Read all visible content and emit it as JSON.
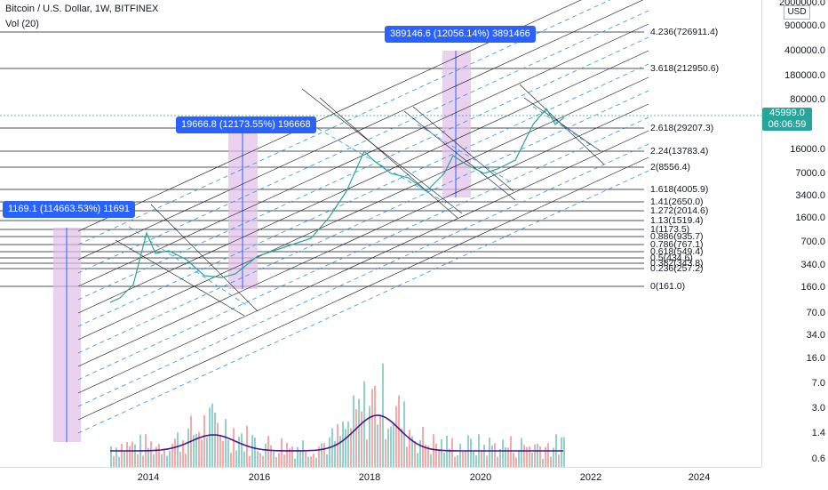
{
  "legend": {
    "title": "Bitcoin / U.S. Dollar, 1W, BITFINEX",
    "volume": "Vol (20)"
  },
  "price_axis": {
    "currency": "USD",
    "ticks": [
      "2000000.0",
      "900000.0",
      "400000.0",
      "180000.0",
      "80000.0",
      "16000.0",
      "7000.0",
      "3400.0",
      "1600.0",
      "700.0",
      "340.0",
      "160.0",
      "70.0",
      "34.0",
      "16.0",
      "7.0",
      "3.0",
      "1.4",
      "0.6"
    ],
    "current_price": "45999.0",
    "countdown": "06:06:59"
  },
  "time_axis": {
    "ticks": [
      "2014",
      "2016",
      "2018",
      "2020",
      "2022",
      "2024"
    ]
  },
  "fib_levels": [
    {
      "label": "4.236(726911.4)"
    },
    {
      "label": "3.618(212950.6)"
    },
    {
      "label": "2.618(29207.3)"
    },
    {
      "label": "2.24(13783.4)"
    },
    {
      "label": "2(8556.4)"
    },
    {
      "label": "1.618(4005.9)"
    },
    {
      "label": "1.41(2650.0)"
    },
    {
      "label": "1.272(2014.6)"
    },
    {
      "label": "1.13(1519.4)"
    },
    {
      "label": "1(1173.5)"
    },
    {
      "label": "0.886(935.7)"
    },
    {
      "label": "0.786(767.1)"
    },
    {
      "label": "0.618(549.4)"
    },
    {
      "label": "0.5(434.6)"
    },
    {
      "label": "0.382(343.8)"
    },
    {
      "label": "0.236(257.2)"
    },
    {
      "label": "0(161.0)"
    }
  ],
  "range_labels": [
    {
      "text": "1169.1 (114663.53%) 11691"
    },
    {
      "text": "19666.8 (12173.55%) 196668"
    },
    {
      "text": "389146.6 (12056.14%) 3891466"
    }
  ],
  "colors": {
    "up": "#26a69a",
    "down": "#ef5350",
    "volume_ma": "#4a148c",
    "range_fill": "#e1bee7",
    "range_line": "#2962ff",
    "channel": "#2196f3"
  }
}
